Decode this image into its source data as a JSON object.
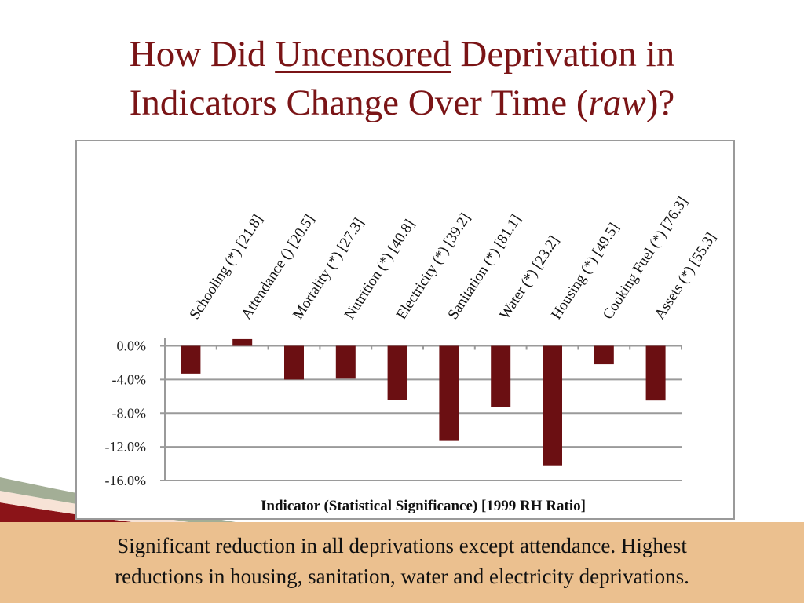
{
  "slide": {
    "title_line1_pre": "How Did ",
    "title_line1_underlined": "Uncensored",
    "title_line1_post": " Deprivation in",
    "title_line2_pre": "Indicators Change Over Time (",
    "title_line2_italic": "raw",
    "title_line2_post": ")?",
    "summary_line1": "Significant reduction in all deprivations except attendance. Highest",
    "summary_line2": "reductions in housing, sanitation, water and electricity deprivations.",
    "colors": {
      "title": "#7a1416",
      "bar": "#6b0f12",
      "band": "#ebc08f",
      "grid": "#9a9a9a"
    }
  },
  "chart_data": {
    "type": "bar",
    "title": "",
    "xlabel": "Indicator (Statistical Significance)  [1999 RH Ratio]",
    "ylabel": "",
    "categories": [
      "Schooling (*) [21.8]",
      "Attendance () [20.5]",
      "Mortality (*) [27.3]",
      "Nutrition (*) [40.8]",
      "Electricity (*) [39.2]",
      "Sanitation (*) [81.1]",
      "Water (*) [23.2]",
      "Housing (*) [49.5]",
      "Cooking Fuel (*) [76.3]",
      "Assets (*) [55.3]"
    ],
    "values": [
      -3.3,
      0.8,
      -4.0,
      -3.9,
      -6.4,
      -11.3,
      -7.3,
      -14.2,
      -2.2,
      -6.5
    ],
    "value_unit": "%",
    "ylim": [
      -16.0,
      0.0
    ],
    "yticks": [
      0.0,
      -4.0,
      -8.0,
      -12.0,
      -16.0
    ],
    "ytick_labels": [
      "0.0%",
      "-4.0%",
      "-8.0%",
      "-12.0%",
      "-16.0%"
    ],
    "grid": true,
    "legend": "none",
    "x_labels_rotation": "diagonal, top axis"
  }
}
